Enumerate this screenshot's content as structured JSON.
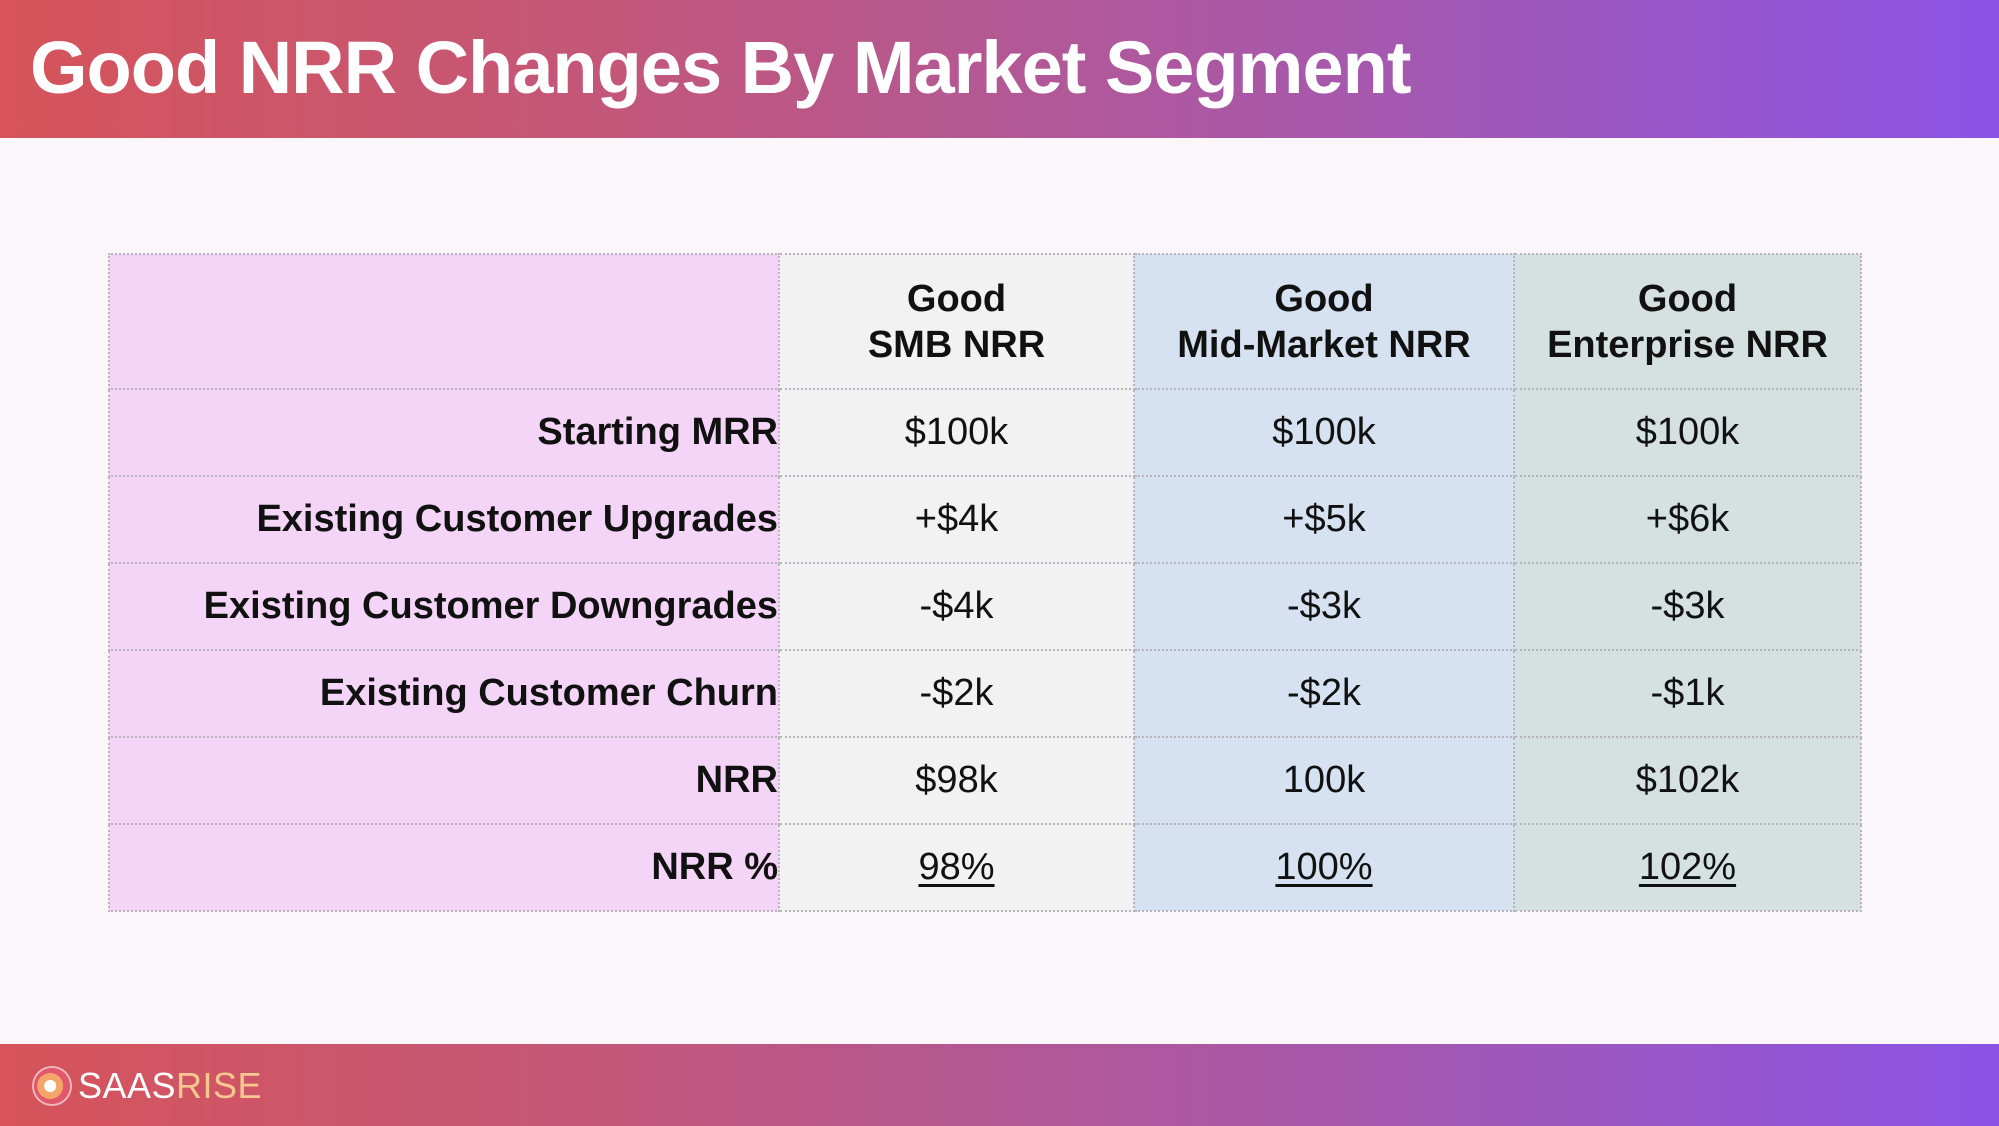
{
  "title": "Good NRR Changes By Market Segment",
  "columns": [
    {
      "line1": "Good",
      "line2": "SMB NRR"
    },
    {
      "line1": "Good",
      "line2": "Mid-Market NRR"
    },
    {
      "line1": "Good",
      "line2": "Enterprise NRR"
    }
  ],
  "rows": [
    {
      "label": "Starting MRR",
      "values": [
        "$100k",
        "$100k",
        "$100k"
      ]
    },
    {
      "label": "Existing Customer Upgrades",
      "values": [
        "+$4k",
        "+$5k",
        "+$6k"
      ]
    },
    {
      "label": "Existing Customer Downgrades",
      "values": [
        "-$4k",
        "-$3k",
        "-$3k"
      ]
    },
    {
      "label": "Existing Customer Churn",
      "values": [
        "-$2k",
        "-$2k",
        "-$1k"
      ]
    },
    {
      "label": "NRR",
      "values": [
        "$98k",
        "100k",
        "$102k"
      ]
    },
    {
      "label": "NRR %",
      "values": [
        "98%",
        "100%",
        "102%"
      ]
    }
  ],
  "footer": {
    "logo_part1": "SAAS",
    "logo_part2": "RISE",
    "logo_icon": "saasrise-logo-icon"
  },
  "colors": {
    "label_column": "#f4d4f7",
    "smb_column": "#f2f2f3",
    "mid_market_column": "#d6e2f1",
    "enterprise_column": "#d5e0e0",
    "gradient_start": "#d6545a",
    "gradient_end": "#8a53e6"
  }
}
